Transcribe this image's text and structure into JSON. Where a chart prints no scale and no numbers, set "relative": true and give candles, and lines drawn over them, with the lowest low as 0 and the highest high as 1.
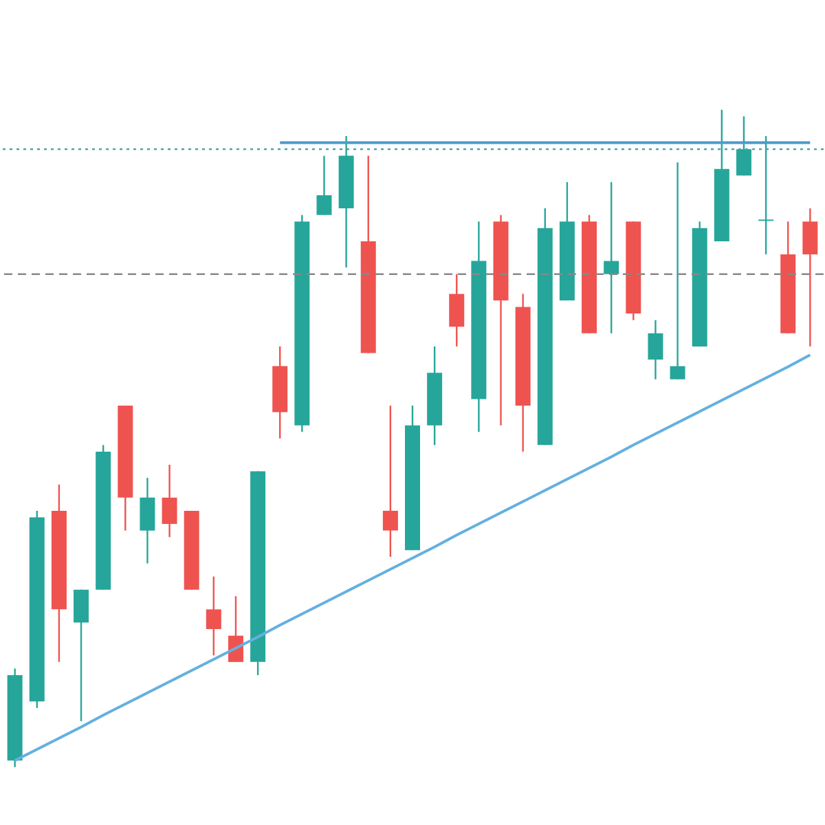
{
  "chart_data": {
    "type": "candlestick",
    "relative": true,
    "categories": [
      null,
      null,
      null,
      null,
      null,
      null,
      null,
      null,
      null,
      null,
      null,
      null,
      null,
      null,
      null,
      null,
      null,
      null,
      null,
      null,
      null,
      null,
      null,
      null,
      null,
      null,
      null,
      null,
      null,
      null,
      null,
      null,
      null,
      null,
      null,
      null,
      null
    ],
    "ohlc": [
      [
        0.01,
        0.15,
        0.0,
        0.14
      ],
      [
        0.1,
        0.39,
        0.09,
        0.38
      ],
      [
        0.39,
        0.43,
        0.16,
        0.24
      ],
      [
        0.22,
        0.27,
        0.07,
        0.27
      ],
      [
        0.27,
        0.49,
        0.27,
        0.48
      ],
      [
        0.55,
        0.55,
        0.36,
        0.41
      ],
      [
        0.36,
        0.44,
        0.31,
        0.41
      ],
      [
        0.41,
        0.46,
        0.35,
        0.37
      ],
      [
        0.39,
        0.39,
        0.27,
        0.27
      ],
      [
        0.24,
        0.29,
        0.17,
        0.21
      ],
      [
        0.2,
        0.26,
        0.16,
        0.16
      ],
      [
        0.16,
        0.45,
        0.14,
        0.45
      ],
      [
        0.61,
        0.64,
        0.5,
        0.54
      ],
      [
        0.52,
        0.84,
        0.51,
        0.83
      ],
      [
        0.84,
        0.93,
        0.84,
        0.87
      ],
      [
        0.85,
        0.96,
        0.76,
        0.93
      ],
      [
        0.8,
        0.93,
        0.63,
        0.63
      ],
      [
        0.39,
        0.55,
        0.32,
        0.36
      ],
      [
        0.33,
        0.55,
        0.33,
        0.52
      ],
      [
        0.52,
        0.64,
        0.49,
        0.6
      ],
      [
        0.72,
        0.75,
        0.64,
        0.67
      ],
      [
        0.56,
        0.83,
        0.51,
        0.77
      ],
      [
        0.83,
        0.84,
        0.52,
        0.71
      ],
      [
        0.7,
        0.72,
        0.48,
        0.55
      ],
      [
        0.49,
        0.85,
        0.49,
        0.82
      ],
      [
        0.71,
        0.89,
        0.71,
        0.83
      ],
      [
        0.83,
        0.84,
        0.66,
        0.66
      ],
      [
        0.75,
        0.89,
        0.66,
        0.77
      ],
      [
        0.83,
        0.83,
        0.68,
        0.69
      ],
      [
        0.62,
        0.68,
        0.59,
        0.66
      ],
      [
        0.59,
        0.92,
        0.59,
        0.61
      ],
      [
        0.64,
        0.83,
        0.64,
        0.82
      ],
      [
        0.8,
        1.0,
        0.8,
        0.91
      ],
      [
        0.9,
        0.99,
        0.9,
        0.94
      ],
      [
        0.831,
        0.96,
        0.78,
        0.833
      ],
      [
        0.78,
        0.83,
        0.66,
        0.66
      ],
      [
        0.83,
        0.85,
        0.64,
        0.78
      ]
    ],
    "colors": [
      "#26a69a",
      "#26a69a",
      "#ef5350",
      "#26a69a",
      "#26a69a",
      "#ef5350",
      "#26a69a",
      "#ef5350",
      "#ef5350",
      "#ef5350",
      "#ef5350",
      "#26a69a",
      "#ef5350",
      "#26a69a",
      "#26a69a",
      "#26a69a",
      "#ef5350",
      "#ef5350",
      "#26a69a",
      "#26a69a",
      "#ef5350",
      "#26a69a",
      "#ef5350",
      "#ef5350",
      "#26a69a",
      "#26a69a",
      "#ef5350",
      "#26a69a",
      "#ef5350",
      "#26a69a",
      "#26a69a",
      "#26a69a",
      "#26a69a",
      "#26a69a",
      "#26a69a",
      "#ef5350",
      "#ef5350"
    ],
    "series": [
      {
        "type": "line",
        "color": "#64b0e0",
        "values": [
          0.01,
          0.027,
          0.044,
          0.061,
          0.079,
          0.096,
          0.113,
          0.13,
          0.147,
          0.164,
          0.181,
          0.198,
          0.216,
          0.233,
          0.25,
          0.267,
          0.284,
          0.301,
          0.318,
          0.335,
          0.353,
          0.37,
          0.387,
          0.404,
          0.421,
          0.438,
          0.455,
          0.472,
          0.49,
          0.507,
          0.524,
          0.541,
          0.558,
          0.575,
          0.592,
          0.609,
          0.627
        ]
      },
      {
        "type": "line",
        "color": "#4c9ac9",
        "values": [
          null,
          null,
          null,
          null,
          null,
          null,
          null,
          null,
          null,
          null,
          null,
          null,
          0.95,
          0.95,
          0.95,
          0.95,
          0.95,
          0.95,
          0.95,
          0.95,
          0.95,
          0.95,
          0.95,
          0.95,
          0.95,
          0.95,
          0.95,
          0.95,
          0.95,
          0.95,
          0.95,
          0.95,
          0.95,
          0.95,
          0.95,
          0.95,
          0.95
        ]
      }
    ],
    "ref_lines": [
      {
        "axis": "y",
        "value": 0.94,
        "color": "#4fa3a5",
        "line_style": "dotted"
      },
      {
        "axis": "y",
        "value": 0.75,
        "color": "#888888",
        "line_style": "dashed"
      }
    ]
  }
}
